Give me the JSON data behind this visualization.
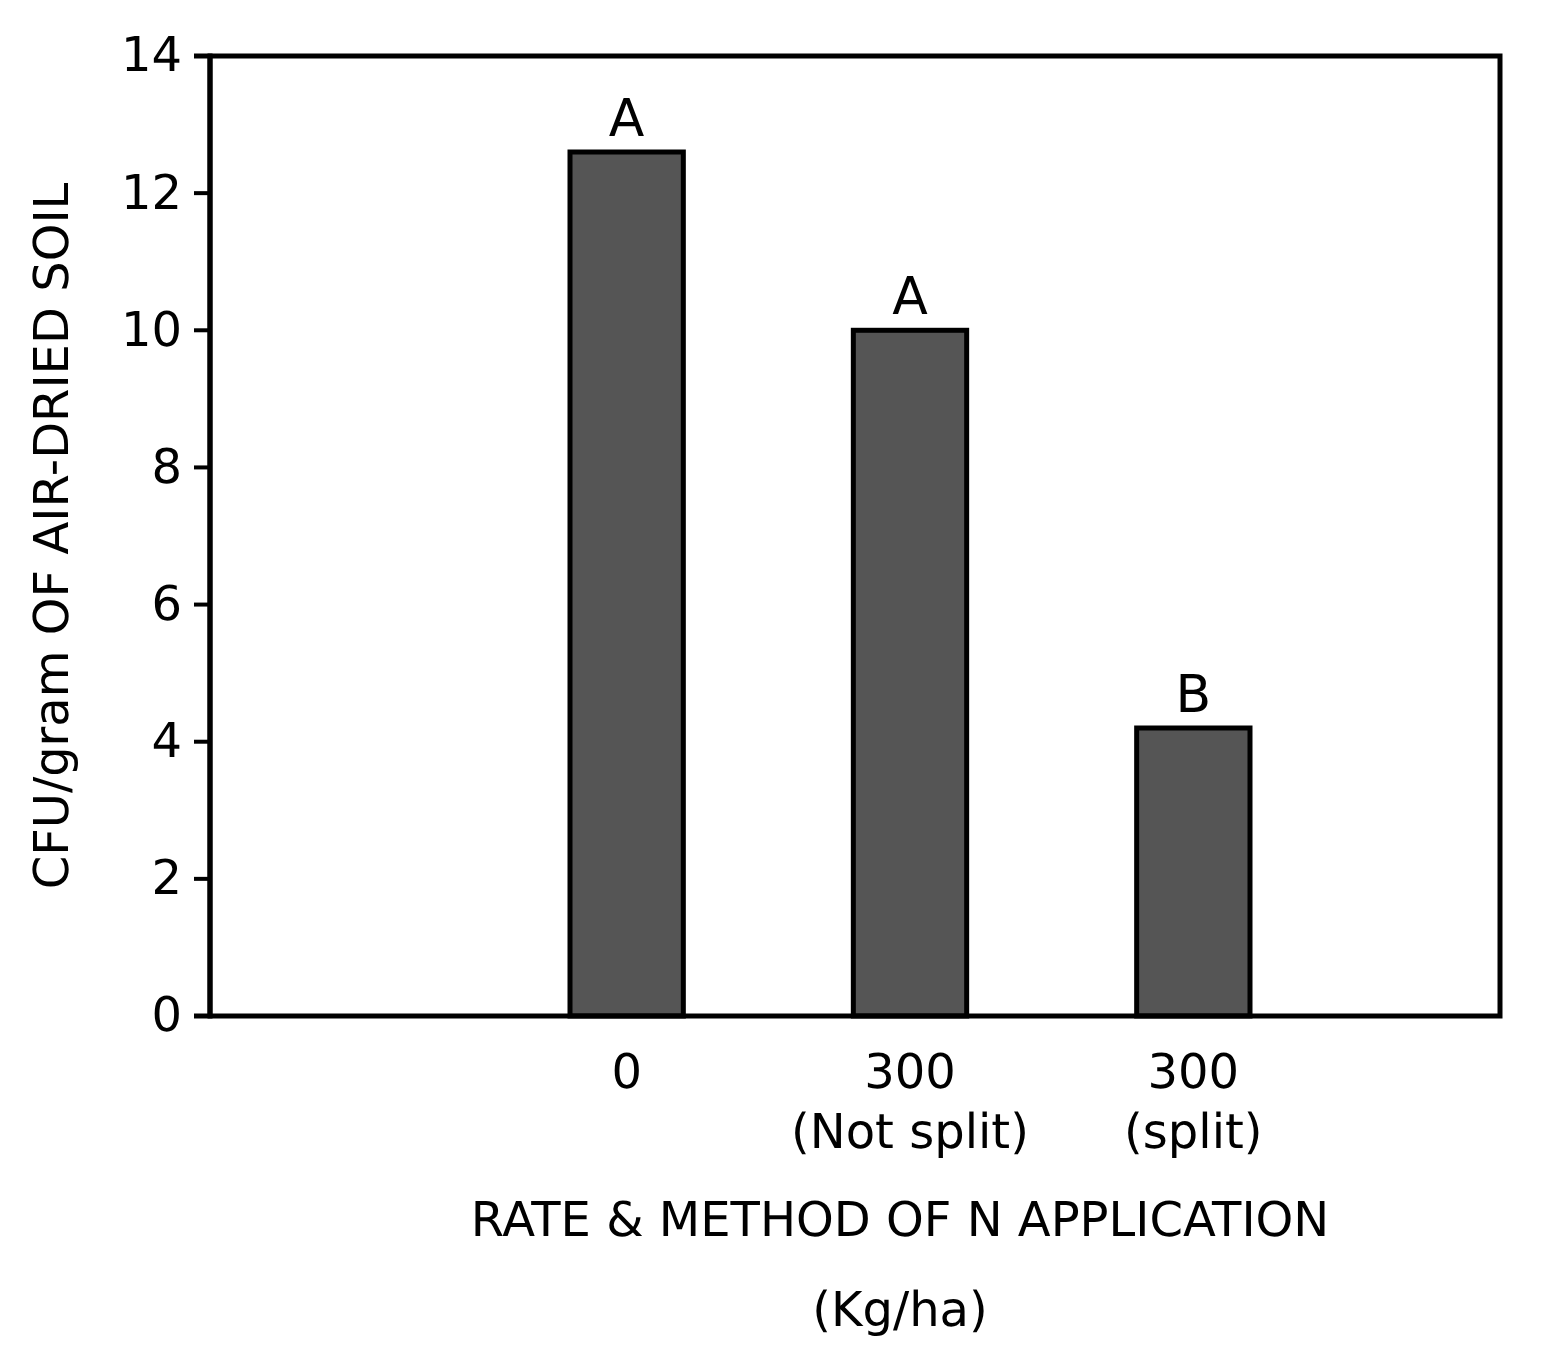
{
  "chart_data": {
    "type": "bar",
    "xlabel": "RATE & METHOD OF N APPLICATION\n(Kg/ha)",
    "ylabel": "CFU/gram OF AIR-DRIED SOIL",
    "categories": [
      "0",
      "300\n(Not split)",
      "300\n(split)"
    ],
    "values": [
      12.6,
      10.0,
      4.2
    ],
    "color": "#555555",
    "ylim": [
      0,
      14
    ],
    "yticks": [
      0,
      2,
      4,
      6,
      8,
      10,
      12,
      14
    ],
    "grid": false,
    "annotations": [
      {
        "text": "A",
        "x": "0",
        "y": 12.6
      },
      {
        "text": "A",
        "x": "300\n(Not split)",
        "y": 10.0
      },
      {
        "text": "B",
        "x": "300\n(split)",
        "y": 4.2
      }
    ]
  }
}
